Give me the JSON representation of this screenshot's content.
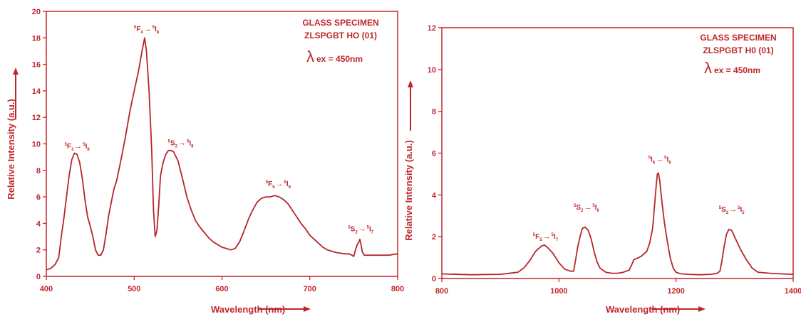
{
  "colors": {
    "accent": "#c0262b",
    "line": "#b5262a"
  },
  "chart_data": [
    {
      "type": "line",
      "xlabel": "Wavelength (nm)",
      "ylabel": "Relative Intensity (a.u.)",
      "xlim": [
        400,
        800
      ],
      "ylim": [
        0,
        20
      ],
      "xticks": [
        400,
        500,
        600,
        700,
        800
      ],
      "yticks": [
        0,
        2,
        4,
        6,
        8,
        10,
        12,
        14,
        16,
        18,
        20
      ],
      "grid": false,
      "info": {
        "line1": "GLASS SPECIMEN",
        "line2": "ZLSPGBT HO (01)",
        "lambda": "λ",
        "excitation": "ex = 450nm"
      },
      "series": [
        {
          "x": [
            400,
            405,
            410,
            414,
            417,
            420,
            423,
            426,
            429,
            432,
            435,
            438,
            441,
            444,
            447,
            450,
            453,
            456,
            459,
            462,
            465,
            468,
            471,
            474,
            477,
            480,
            485,
            490,
            495,
            500,
            505,
            509,
            512,
            514,
            517,
            520,
            522,
            524,
            526,
            528,
            530,
            533,
            536,
            539,
            542,
            545,
            550,
            555,
            560,
            565,
            570,
            575,
            580,
            585,
            590,
            595,
            600,
            605,
            610,
            615,
            620,
            625,
            630,
            635,
            640,
            645,
            650,
            655,
            660,
            665,
            670,
            675,
            680,
            685,
            690,
            695,
            700,
            705,
            710,
            715,
            720,
            725,
            730,
            735,
            740,
            745,
            748,
            750,
            752,
            754,
            756,
            757,
            758,
            760,
            762,
            765,
            770,
            775,
            780,
            785,
            790,
            795,
            800
          ],
          "y": [
            0.5,
            0.6,
            0.9,
            1.4,
            3.0,
            4.4,
            6.0,
            7.6,
            8.8,
            9.3,
            9.2,
            8.6,
            7.4,
            5.8,
            4.5,
            3.8,
            3.0,
            2.0,
            1.6,
            1.6,
            2.0,
            3.2,
            4.6,
            5.6,
            6.6,
            7.2,
            8.8,
            10.5,
            12.4,
            14.0,
            15.5,
            17.0,
            18.0,
            17.0,
            14.0,
            9.5,
            5.0,
            3.0,
            3.5,
            5.4,
            7.6,
            8.6,
            9.2,
            9.5,
            9.5,
            9.4,
            8.7,
            7.4,
            6.0,
            5.0,
            4.2,
            3.7,
            3.3,
            2.9,
            2.6,
            2.4,
            2.2,
            2.1,
            2.0,
            2.1,
            2.6,
            3.4,
            4.3,
            5.0,
            5.6,
            5.9,
            6.0,
            6.0,
            6.1,
            6.0,
            5.8,
            5.5,
            5.0,
            4.5,
            4.0,
            3.6,
            3.1,
            2.8,
            2.5,
            2.2,
            2.0,
            1.9,
            1.8,
            1.75,
            1.7,
            1.7,
            1.6,
            1.5,
            2.0,
            2.4,
            2.6,
            2.8,
            2.5,
            1.8,
            1.6,
            1.6,
            1.6,
            1.6,
            1.6,
            1.6,
            1.6,
            1.65,
            1.7
          ]
        }
      ],
      "annotations": [
        {
          "x": 435,
          "y": 9.65,
          "up1": "5",
          "main1": "F",
          "sub1": "3",
          "arrow": "→",
          "up2": "5",
          "main2": "I",
          "sub2": "8"
        },
        {
          "x": 514,
          "y": 18.5,
          "up1": "5",
          "main1": "F",
          "sub1": "4",
          "arrow": "→",
          "up2": "5",
          "main2": "I",
          "sub2": "8"
        },
        {
          "x": 553,
          "y": 9.9,
          "up1": "5",
          "main1": "S",
          "sub1": "2",
          "arrow": "→",
          "up2": "5",
          "main2": "I",
          "sub2": "8"
        },
        {
          "x": 664,
          "y": 6.8,
          "up1": "5",
          "main1": "F",
          "sub1": "5",
          "arrow": "→",
          "up2": "5",
          "main2": "I",
          "sub2": "8"
        },
        {
          "x": 758,
          "y": 3.4,
          "up1": "5",
          "main1": "S",
          "sub1": "2",
          "arrow": "→",
          "up2": "5",
          "main2": "I",
          "sub2": "7"
        }
      ]
    },
    {
      "type": "line",
      "xlabel": "Wavelength (nm)",
      "ylabel": "Relative Intensity (a.u.)",
      "xlim": [
        800,
        1400
      ],
      "ylim": [
        0,
        12
      ],
      "xticks": [
        800,
        1000,
        1200,
        1400
      ],
      "yticks": [
        0,
        2,
        4,
        6,
        8,
        10,
        12
      ],
      "grid": false,
      "info": {
        "line1": "GLASS SPECIMEN",
        "line2": "ZLSPGBT H0 (01)",
        "lambda": "λ",
        "excitation": "ex = 450nm"
      },
      "series": [
        {
          "x": [
            800,
            850,
            900,
            930,
            940,
            950,
            960,
            970,
            975,
            980,
            990,
            1000,
            1010,
            1020,
            1025,
            1028,
            1032,
            1036,
            1040,
            1045,
            1050,
            1055,
            1060,
            1065,
            1070,
            1080,
            1090,
            1100,
            1110,
            1120,
            1125,
            1128,
            1132,
            1140,
            1150,
            1155,
            1160,
            1163,
            1166,
            1168,
            1170,
            1172,
            1175,
            1180,
            1185,
            1190,
            1195,
            1200,
            1205,
            1210,
            1220,
            1240,
            1260,
            1270,
            1275,
            1278,
            1282,
            1286,
            1290,
            1295,
            1300,
            1305,
            1310,
            1320,
            1330,
            1340,
            1360,
            1380,
            1400
          ],
          "y": [
            0.22,
            0.18,
            0.2,
            0.3,
            0.5,
            0.85,
            1.3,
            1.55,
            1.6,
            1.5,
            1.2,
            0.75,
            0.45,
            0.35,
            0.35,
            0.8,
            1.5,
            2.0,
            2.4,
            2.45,
            2.3,
            1.9,
            1.3,
            0.8,
            0.5,
            0.3,
            0.25,
            0.25,
            0.3,
            0.4,
            0.7,
            0.9,
            0.95,
            1.05,
            1.3,
            1.7,
            2.4,
            3.4,
            4.4,
            5.0,
            5.05,
            4.7,
            3.9,
            2.7,
            1.8,
            1.0,
            0.5,
            0.3,
            0.25,
            0.22,
            0.2,
            0.18,
            0.2,
            0.25,
            0.35,
            0.8,
            1.5,
            2.1,
            2.35,
            2.3,
            2.0,
            1.7,
            1.4,
            0.9,
            0.5,
            0.3,
            0.25,
            0.22,
            0.2
          ]
        }
      ],
      "annotations": [
        {
          "x": 977,
          "y": 1.9,
          "up1": "5",
          "main1": "F",
          "sub1": "5",
          "arrow": "→",
          "up2": "5",
          "main2": "I",
          "sub2": "7"
        },
        {
          "x": 1047,
          "y": 3.3,
          "up1": "5",
          "main1": "S",
          "sub1": "2",
          "arrow": "→",
          "up2": "5",
          "main2": "I",
          "sub2": "6"
        },
        {
          "x": 1172,
          "y": 5.6,
          "up1": "5",
          "main1": "I",
          "sub1": "6",
          "arrow": "→",
          "up2": "5",
          "main2": "I",
          "sub2": "8"
        },
        {
          "x": 1295,
          "y": 3.2,
          "up1": "5",
          "main1": "S",
          "sub1": "2",
          "arrow": "→",
          "up2": "5",
          "main2": "I",
          "sub2": "5"
        }
      ]
    }
  ]
}
